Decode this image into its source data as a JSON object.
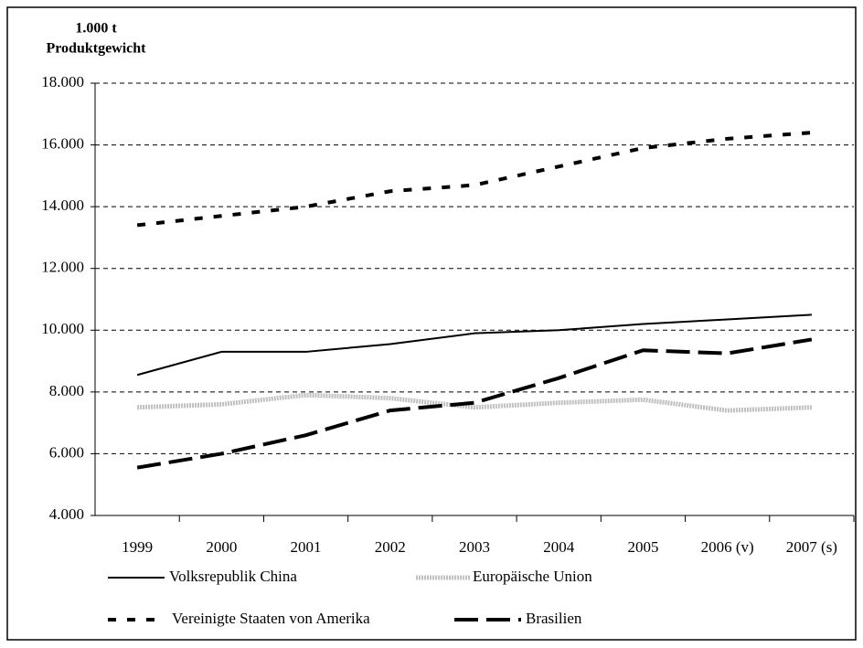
{
  "chart_data": {
    "type": "line",
    "ylabel_lines": [
      "1.000 t",
      "Produktgewicht"
    ],
    "categories": [
      "1999",
      "2000",
      "2001",
      "2002",
      "2003",
      "2004",
      "2005",
      "2006 (v)",
      "2007 (s)"
    ],
    "ylim": [
      4000,
      18000
    ],
    "yticks": [
      {
        "value": 4000,
        "label": "4.000"
      },
      {
        "value": 6000,
        "label": "6.000"
      },
      {
        "value": 8000,
        "label": "8.000"
      },
      {
        "value": 10000,
        "label": "10.000"
      },
      {
        "value": 12000,
        "label": "12.000"
      },
      {
        "value": 14000,
        "label": "14.000"
      },
      {
        "value": 16000,
        "label": "16.000"
      },
      {
        "value": 18000,
        "label": "18.000"
      }
    ],
    "grid": true,
    "series": [
      {
        "name": "Volksrepublik China",
        "color": "#000000",
        "dash": "none",
        "width": 2,
        "values": [
          8550,
          9300,
          9300,
          9550,
          9900,
          10000,
          10200,
          10350,
          10500
        ]
      },
      {
        "name": "Europäische Union",
        "color": "#c0c0c0",
        "dash": "2,1",
        "width": 5,
        "values": [
          7500,
          7600,
          7900,
          7800,
          7500,
          7650,
          7750,
          7400,
          7500
        ]
      },
      {
        "name": "Vereinigte Staaten von Amerika",
        "color": "#000000",
        "dash": "9,12",
        "width": 4,
        "values": [
          13400,
          13700,
          14000,
          14500,
          14700,
          15300,
          15900,
          16200,
          16400
        ]
      },
      {
        "name": "Brasilien",
        "color": "#000000",
        "dash": "26,9",
        "width": 4,
        "values": [
          5550,
          6000,
          6600,
          7400,
          7650,
          8450,
          9350,
          9250,
          9700
        ]
      }
    ]
  }
}
